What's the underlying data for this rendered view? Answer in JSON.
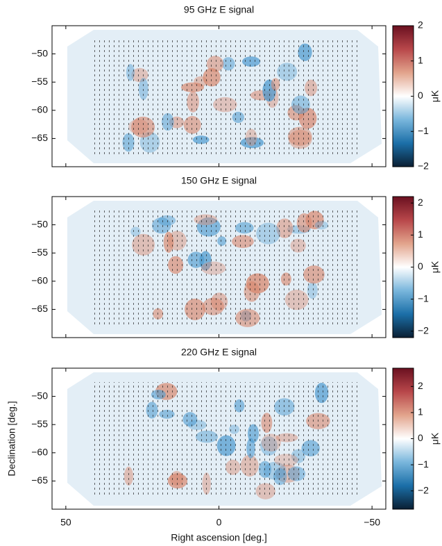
{
  "chart_data": [
    {
      "type": "map",
      "title": "95 GHz E signal",
      "xlim": [
        54.5,
        -54.5
      ],
      "xticks": [
        50,
        0,
        {
          "value": -50,
          "label": "−50"
        }
      ],
      "show_xtick_labels": false,
      "ylim": [
        -70,
        -45
      ],
      "yticks": [
        {
          "value": -50,
          "label": "−50"
        },
        {
          "value": -55,
          "label": "−55"
        },
        {
          "value": -60,
          "label": "−60"
        },
        {
          "value": -65,
          "label": "−65"
        }
      ],
      "colorbar": {
        "label": "μK",
        "lim": [
          -2,
          2
        ],
        "ticks": [
          2,
          1,
          0,
          {
            "value": -1,
            "label": "−1"
          },
          {
            "value": -2,
            "label": "−2"
          }
        ],
        "colormap": [
          "#0a1f33",
          "#1b6fa8",
          "#79b6dc",
          "#ffffff",
          "#e2a48c",
          "#b8474a",
          "#6a1020"
        ]
      }
    },
    {
      "type": "map",
      "title": "150 GHz E signal",
      "xlim": [
        54.5,
        -54.5
      ],
      "xticks": [
        50,
        0,
        {
          "value": -50,
          "label": "−50"
        }
      ],
      "show_xtick_labels": false,
      "ylim": [
        -70,
        -45
      ],
      "yticks": [
        {
          "value": -50,
          "label": "−50"
        },
        {
          "value": -55,
          "label": "−55"
        },
        {
          "value": -60,
          "label": "−60"
        },
        {
          "value": -65,
          "label": "−65"
        }
      ],
      "colorbar": {
        "label": "μK",
        "lim": [
          -2.2,
          2.2
        ],
        "ticks": [
          2,
          1,
          0,
          {
            "value": -1,
            "label": "−1"
          },
          {
            "value": -2,
            "label": "−2"
          }
        ],
        "colormap": [
          "#0a1f33",
          "#1b6fa8",
          "#79b6dc",
          "#ffffff",
          "#e2a48c",
          "#b8474a",
          "#6a1020"
        ]
      }
    },
    {
      "type": "map",
      "title": "220 GHz E signal",
      "xlabel": "Right ascension [deg.]",
      "ylabel": "Declination [deg.]",
      "xlim": [
        54.5,
        -54.5
      ],
      "xticks": [
        50,
        0,
        {
          "value": -50,
          "label": "−50"
        }
      ],
      "show_xtick_labels": true,
      "ylim": [
        -70,
        -45
      ],
      "yticks": [
        {
          "value": -50,
          "label": "−50"
        },
        {
          "value": -55,
          "label": "−55"
        },
        {
          "value": -60,
          "label": "−60"
        },
        {
          "value": -65,
          "label": "−65"
        }
      ],
      "colorbar": {
        "label": "μK",
        "lim": [
          -2.7,
          2.7
        ],
        "ticks": [
          2,
          1,
          0,
          {
            "value": -1,
            "label": "−1"
          },
          {
            "value": -2,
            "label": "−2"
          }
        ],
        "colormap": [
          "#0a1f33",
          "#1b6fa8",
          "#79b6dc",
          "#ffffff",
          "#e2a48c",
          "#b8474a",
          "#6a1020"
        ]
      }
    }
  ]
}
